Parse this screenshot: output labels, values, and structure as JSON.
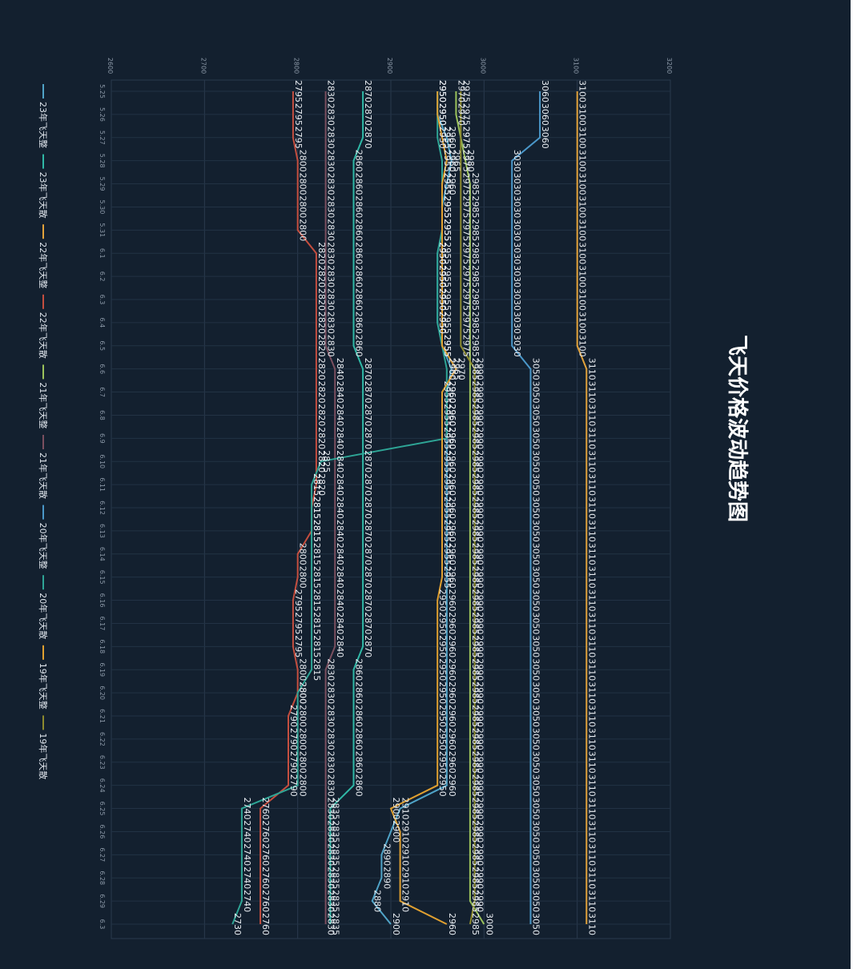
{
  "chart_data": {
    "type": "line",
    "title": "飞天价格波动趋势图",
    "orientation": "rotated-90-clockwise",
    "xlabel": "",
    "ylabel": "",
    "ylim": [
      2600,
      3200
    ],
    "y_ticks": [
      2600,
      2700,
      2800,
      2900,
      3000,
      3100,
      3200
    ],
    "x": [
      "5.25",
      "5.26",
      "5.27",
      "5.28",
      "5.29",
      "5.30",
      "5.31",
      "6.1",
      "6.2",
      "6.3",
      "6.4",
      "6.5",
      "6.6",
      "6.7",
      "6.8",
      "6.9",
      "6.10",
      "6.11",
      "6.12",
      "6.13",
      "6.14",
      "6.15",
      "6.16",
      "6.17",
      "6.18",
      "6.19",
      "6.20",
      "6.21",
      "6.22",
      "6.23",
      "6.24",
      "6.25",
      "6.26",
      "6.27",
      "6.28",
      "6.29",
      "6.3"
    ],
    "grid": true,
    "legend_position": "left",
    "series": [
      {
        "name": "23年飞天整",
        "color": "#4fa3c7",
        "values": [
          2950,
          2950,
          2960,
          2965,
          2960,
          2955,
          2955,
          2950,
          2950,
          2950,
          2950,
          2955,
          2965,
          2960,
          2960,
          2960,
          2960,
          2960,
          2960,
          2960,
          2960,
          2960,
          2960,
          2960,
          2960,
          2960,
          2960,
          2960,
          2960,
          2960,
          2960,
          2910,
          2900,
          2890,
          2890,
          2880,
          2900
        ]
      },
      {
        "name": "23年飞天散",
        "color": "#2fb8a6",
        "values": [
          2870,
          2870,
          2870,
          2860,
          2860,
          2860,
          2860,
          2860,
          2860,
          2860,
          2860,
          2860,
          2870,
          2870,
          2870,
          2870,
          2870,
          2870,
          2870,
          2870,
          2870,
          2870,
          2870,
          2870,
          2870,
          2860,
          2860,
          2860,
          2860,
          2860,
          2860,
          2835,
          2835,
          2835,
          2835,
          2835,
          2835
        ]
      },
      {
        "name": "22年飞天整",
        "color": "#e2a23b",
        "values": [
          3100,
          3100,
          3100,
          3100,
          3100,
          3100,
          3100,
          3100,
          3100,
          3100,
          3100,
          3100,
          3110,
          3110,
          3110,
          3110,
          3110,
          3110,
          3110,
          3110,
          3110,
          3110,
          3110,
          3110,
          3110,
          3110,
          3110,
          3110,
          3110,
          3110,
          3110,
          3110,
          3110,
          3110,
          3110,
          3110,
          3110
        ]
      },
      {
        "name": "22年飞天散",
        "color": "#c44e3f",
        "values": [
          2795,
          2795,
          2795,
          2800,
          2800,
          2800,
          2800,
          2820,
          2820,
          2820,
          2820,
          2820,
          2820,
          2820,
          2820,
          2820,
          2820,
          2820,
          2815,
          2815,
          2800,
          2800,
          2795,
          2795,
          2795,
          2800,
          2800,
          2790,
          2790,
          2790,
          2790,
          2760,
          2760,
          2760,
          2760,
          2760,
          2760
        ]
      },
      {
        "name": "21年飞天整",
        "color": "#9bc25b",
        "values": [
          2970,
          2970,
          2975,
          2980,
          2985,
          2985,
          2985,
          2985,
          2985,
          2985,
          2985,
          2985,
          2985,
          2985,
          2985,
          2985,
          2985,
          2985,
          2985,
          2985,
          2985,
          2985,
          2985,
          2985,
          2985,
          2985,
          2985,
          2985,
          2985,
          2985,
          2985,
          2985,
          2985,
          2985,
          2985,
          2985,
          3000
        ]
      },
      {
        "name": "21年飞天散",
        "color": "#7a4f5f",
        "values": [
          2830,
          2830,
          2830,
          2830,
          2830,
          2830,
          2830,
          2830,
          2830,
          2830,
          2830,
          2830,
          2840,
          2840,
          2840,
          2840,
          2840,
          2840,
          2840,
          2840,
          2840,
          2840,
          2840,
          2840,
          2840,
          2830,
          2830,
          2830,
          2830,
          2830,
          2830,
          2830,
          2830,
          2830,
          2830,
          2830,
          2830
        ]
      },
      {
        "name": "20年飞天整",
        "color": "#4a97c9",
        "values": [
          3060,
          3060,
          3060,
          3030,
          3030,
          3030,
          3030,
          3030,
          3030,
          3030,
          3030,
          3030,
          3050,
          3050,
          3050,
          3050,
          3050,
          3050,
          3050,
          3050,
          3050,
          3050,
          3050,
          3050,
          3050,
          3050,
          3050,
          3050,
          3050,
          3050,
          3050,
          3050,
          3050,
          3050,
          3050,
          3050,
          3050
        ]
      },
      {
        "name": "20年飞天散",
        "color": "#2ea596",
        "values": [
          2950,
          2950,
          2950,
          2955,
          2955,
          2955,
          2955,
          2950,
          2950,
          2950,
          2950,
          2955,
          2960,
          2960,
          2960,
          2960,
          2825,
          2815,
          2815,
          2815,
          2815,
          2815,
          2815,
          2815,
          2815,
          2815,
          2800,
          2800,
          2800,
          2800,
          2800,
          2740,
          2740,
          2740,
          2740,
          2740,
          2730
        ]
      },
      {
        "name": "19年飞天整",
        "color": "#e0a030",
        "values": [
          2950,
          2950,
          2955,
          2960,
          2955,
          2955,
          2955,
          2955,
          2955,
          2955,
          2955,
          2955,
          2970,
          2955,
          2955,
          2955,
          2955,
          2955,
          2955,
          2955,
          2955,
          2955,
          2950,
          2950,
          2950,
          2950,
          2950,
          2950,
          2950,
          2950,
          2950,
          2900,
          2910,
          2910,
          2910,
          2910,
          2960
        ]
      },
      {
        "name": "19年飞天散",
        "color": "#8d8a2e",
        "values": [
          2975,
          2975,
          2975,
          2975,
          2975,
          2975,
          2975,
          2975,
          2975,
          2975,
          2975,
          2975,
          2990,
          2990,
          2990,
          2990,
          2990,
          2990,
          2990,
          2990,
          2990,
          2990,
          2990,
          2990,
          2990,
          2990,
          2990,
          2990,
          2990,
          2990,
          2990,
          2990,
          2990,
          2990,
          2990,
          2990,
          2985
        ]
      }
    ]
  }
}
